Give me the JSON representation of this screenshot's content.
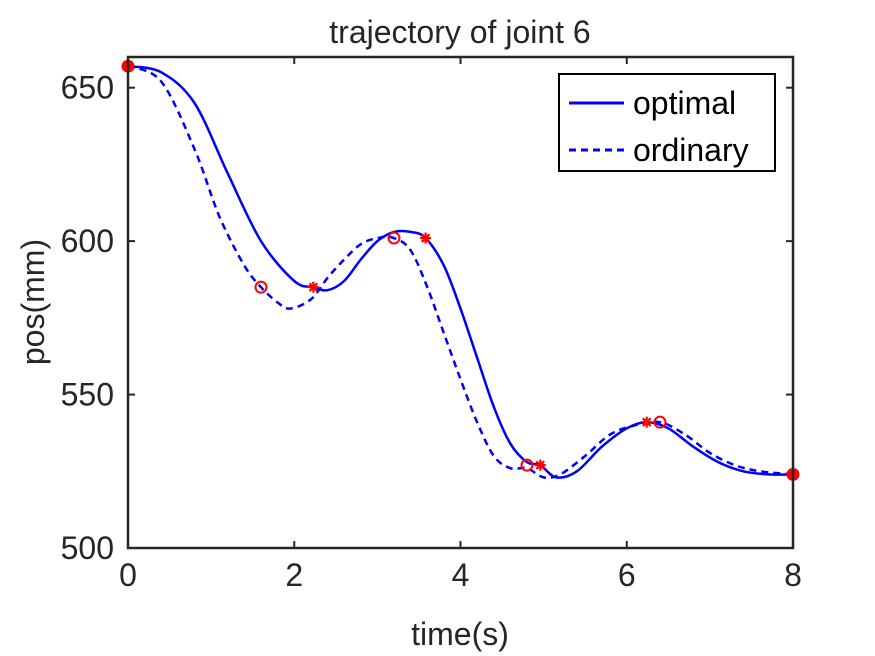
{
  "chart_data": {
    "type": "line",
    "title": "trajectory of joint 6",
    "xlabel": "time(s)",
    "ylabel": "pos(mm)",
    "xlim": [
      0,
      8
    ],
    "ylim": [
      500,
      660
    ],
    "xticks": [
      0,
      2,
      4,
      6,
      8
    ],
    "yticks": [
      500,
      550,
      600,
      650
    ],
    "grid": false,
    "legend_position": "top-right",
    "series": [
      {
        "name": "optimal",
        "line_style": "solid",
        "color": "#0000ff",
        "x": [
          0,
          0.4,
          0.8,
          1.2,
          1.6,
          2.0,
          2.23,
          2.4,
          2.6,
          2.8,
          3.0,
          3.2,
          3.4,
          3.58,
          3.8,
          4.0,
          4.2,
          4.4,
          4.6,
          4.8,
          4.96,
          5.15,
          5.4,
          5.7,
          6.0,
          6.24,
          6.5,
          6.8,
          7.1,
          7.4,
          7.7,
          8.0
        ],
        "y": [
          657,
          655,
          645,
          622,
          600,
          587,
          585,
          584,
          587,
          594,
          600,
          603,
          603,
          601,
          592,
          578,
          562,
          546,
          534,
          528,
          527,
          523,
          525,
          533,
          539,
          541,
          539,
          533,
          528,
          525,
          524,
          524
        ]
      },
      {
        "name": "ordinary",
        "line_style": "dashed",
        "color": "#0000ff",
        "x": [
          0,
          0.4,
          0.8,
          1.1,
          1.4,
          1.6,
          1.8,
          1.95,
          2.2,
          2.4,
          2.6,
          2.8,
          3.0,
          3.2,
          3.4,
          3.6,
          3.8,
          4.0,
          4.2,
          4.4,
          4.6,
          4.8,
          5.0,
          5.2,
          5.5,
          5.8,
          6.1,
          6.4,
          6.7,
          7.0,
          7.3,
          7.6,
          8.0
        ],
        "y": [
          657,
          652,
          630,
          608,
          592,
          585,
          580,
          578,
          581,
          588,
          594,
          599,
          601,
          601,
          597,
          585,
          570,
          555,
          541,
          530,
          526,
          526,
          523,
          524,
          530,
          537,
          540,
          541,
          537,
          531,
          527,
          525,
          524
        ]
      }
    ],
    "markers": [
      {
        "type": "filled-dot",
        "color": "#ff0000",
        "x": [
          0,
          8
        ],
        "y": [
          657,
          524
        ]
      },
      {
        "type": "asterisk",
        "color": "#ff0000",
        "x": [
          2.23,
          3.58,
          4.96,
          6.24
        ],
        "y": [
          585,
          601,
          527,
          541
        ]
      },
      {
        "type": "open-circle",
        "color": "#ff0000",
        "x": [
          1.6,
          3.2,
          4.8,
          6.4
        ],
        "y": [
          585,
          601,
          527,
          541
        ]
      }
    ]
  }
}
